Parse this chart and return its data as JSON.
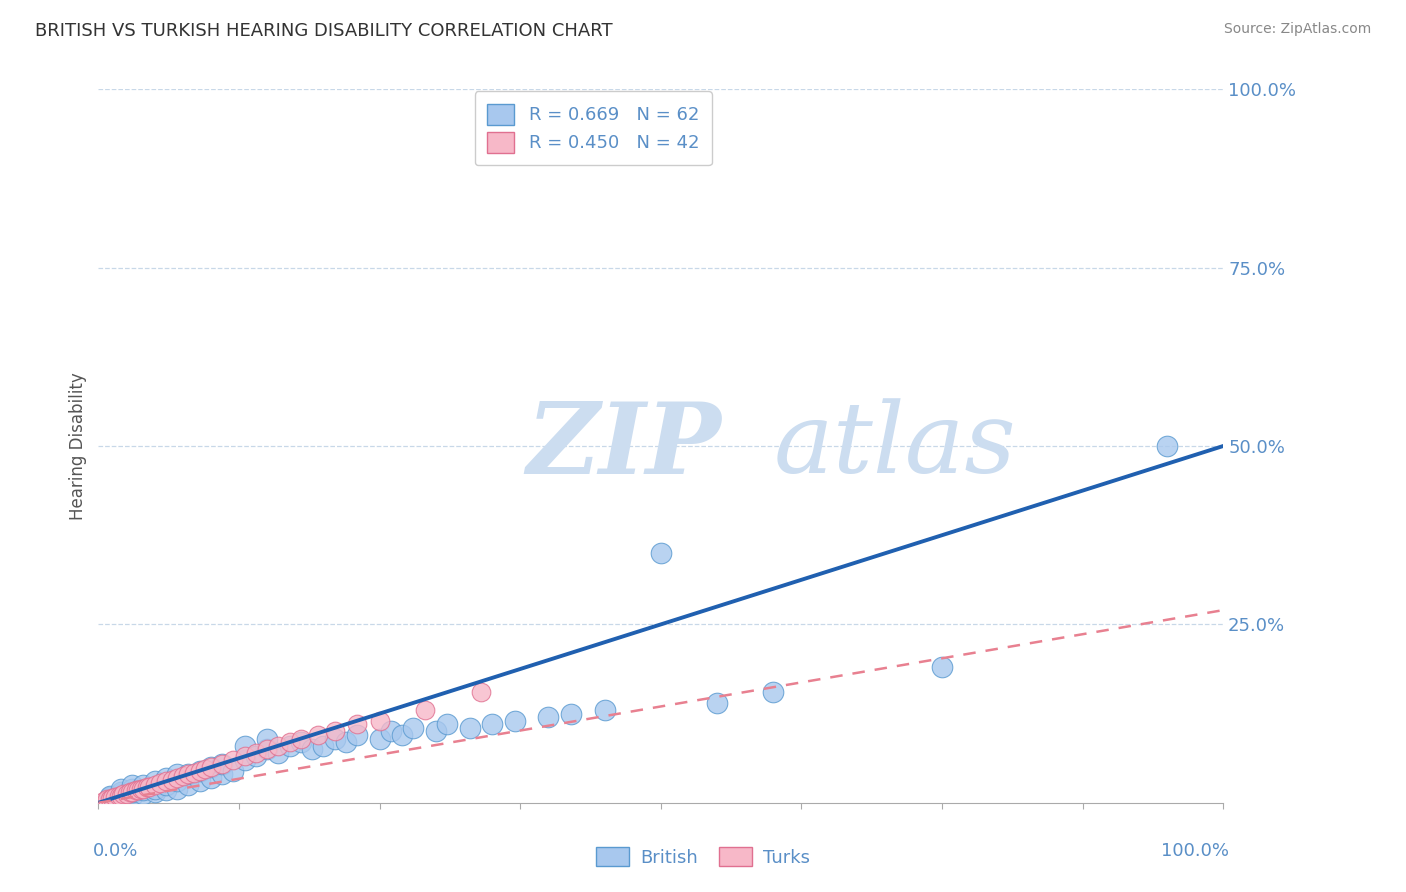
{
  "title": "BRITISH VS TURKISH HEARING DISABILITY CORRELATION CHART",
  "source_text": "Source: ZipAtlas.com",
  "ylabel": "Hearing Disability",
  "xlim": [
    0.0,
    1.0
  ],
  "ylim": [
    0.0,
    1.0
  ],
  "ytick_labels": [
    "100.0%",
    "75.0%",
    "50.0%",
    "25.0%"
  ],
  "ytick_vals": [
    1.0,
    0.75,
    0.5,
    0.25
  ],
  "british_R": 0.669,
  "british_N": 62,
  "turkish_R": 0.45,
  "turkish_N": 42,
  "british_color": "#a8c8ee",
  "british_edge_color": "#5a9ad0",
  "turkish_color": "#f7b8c8",
  "turkish_edge_color": "#e07090",
  "british_line_color": "#2060b0",
  "turkish_line_color": "#e88090",
  "watermark_zip": "ZIP",
  "watermark_atlas": "atlas",
  "watermark_color": "#ccddf0",
  "legend_british_label": "British",
  "legend_turkish_label": "Turks",
  "british_scatter_x": [
    0.01,
    0.01,
    0.01,
    0.02,
    0.02,
    0.02,
    0.02,
    0.03,
    0.03,
    0.03,
    0.03,
    0.04,
    0.04,
    0.04,
    0.05,
    0.05,
    0.05,
    0.06,
    0.06,
    0.06,
    0.07,
    0.07,
    0.07,
    0.08,
    0.08,
    0.09,
    0.09,
    0.1,
    0.1,
    0.11,
    0.11,
    0.12,
    0.13,
    0.13,
    0.14,
    0.15,
    0.15,
    0.16,
    0.17,
    0.18,
    0.19,
    0.2,
    0.21,
    0.22,
    0.23,
    0.25,
    0.26,
    0.27,
    0.28,
    0.3,
    0.31,
    0.33,
    0.35,
    0.37,
    0.4,
    0.42,
    0.45,
    0.5,
    0.55,
    0.6,
    0.75,
    0.95
  ],
  "british_scatter_y": [
    0.005,
    0.008,
    0.01,
    0.008,
    0.012,
    0.015,
    0.02,
    0.01,
    0.015,
    0.02,
    0.025,
    0.012,
    0.018,
    0.025,
    0.015,
    0.02,
    0.03,
    0.018,
    0.025,
    0.035,
    0.02,
    0.03,
    0.04,
    0.025,
    0.04,
    0.03,
    0.045,
    0.035,
    0.05,
    0.04,
    0.055,
    0.045,
    0.06,
    0.08,
    0.065,
    0.075,
    0.09,
    0.07,
    0.08,
    0.085,
    0.075,
    0.08,
    0.09,
    0.085,
    0.095,
    0.09,
    0.1,
    0.095,
    0.105,
    0.1,
    0.11,
    0.105,
    0.11,
    0.115,
    0.12,
    0.125,
    0.13,
    0.35,
    0.14,
    0.155,
    0.19,
    0.5
  ],
  "turkish_scatter_x": [
    0.005,
    0.008,
    0.01,
    0.012,
    0.015,
    0.018,
    0.02,
    0.022,
    0.025,
    0.028,
    0.03,
    0.033,
    0.035,
    0.038,
    0.04,
    0.043,
    0.045,
    0.05,
    0.055,
    0.06,
    0.065,
    0.07,
    0.075,
    0.08,
    0.085,
    0.09,
    0.095,
    0.1,
    0.11,
    0.12,
    0.13,
    0.14,
    0.15,
    0.16,
    0.17,
    0.18,
    0.195,
    0.21,
    0.23,
    0.25,
    0.29,
    0.34
  ],
  "turkish_scatter_y": [
    0.003,
    0.005,
    0.006,
    0.007,
    0.008,
    0.01,
    0.01,
    0.012,
    0.012,
    0.015,
    0.015,
    0.018,
    0.018,
    0.02,
    0.02,
    0.022,
    0.022,
    0.025,
    0.028,
    0.03,
    0.032,
    0.035,
    0.038,
    0.04,
    0.042,
    0.045,
    0.048,
    0.05,
    0.055,
    0.06,
    0.065,
    0.07,
    0.075,
    0.08,
    0.085,
    0.09,
    0.095,
    0.1,
    0.11,
    0.115,
    0.13,
    0.155
  ],
  "british_line_x": [
    0.0,
    1.0
  ],
  "british_line_y": [
    0.0,
    0.5
  ],
  "turkish_line_x": [
    0.0,
    1.0
  ],
  "turkish_line_y": [
    0.0,
    0.27
  ],
  "grid_color": "#c8d8e8",
  "background_color": "#ffffff",
  "title_color": "#333333",
  "tick_label_color": "#5a8fc7",
  "source_color": "#888888"
}
